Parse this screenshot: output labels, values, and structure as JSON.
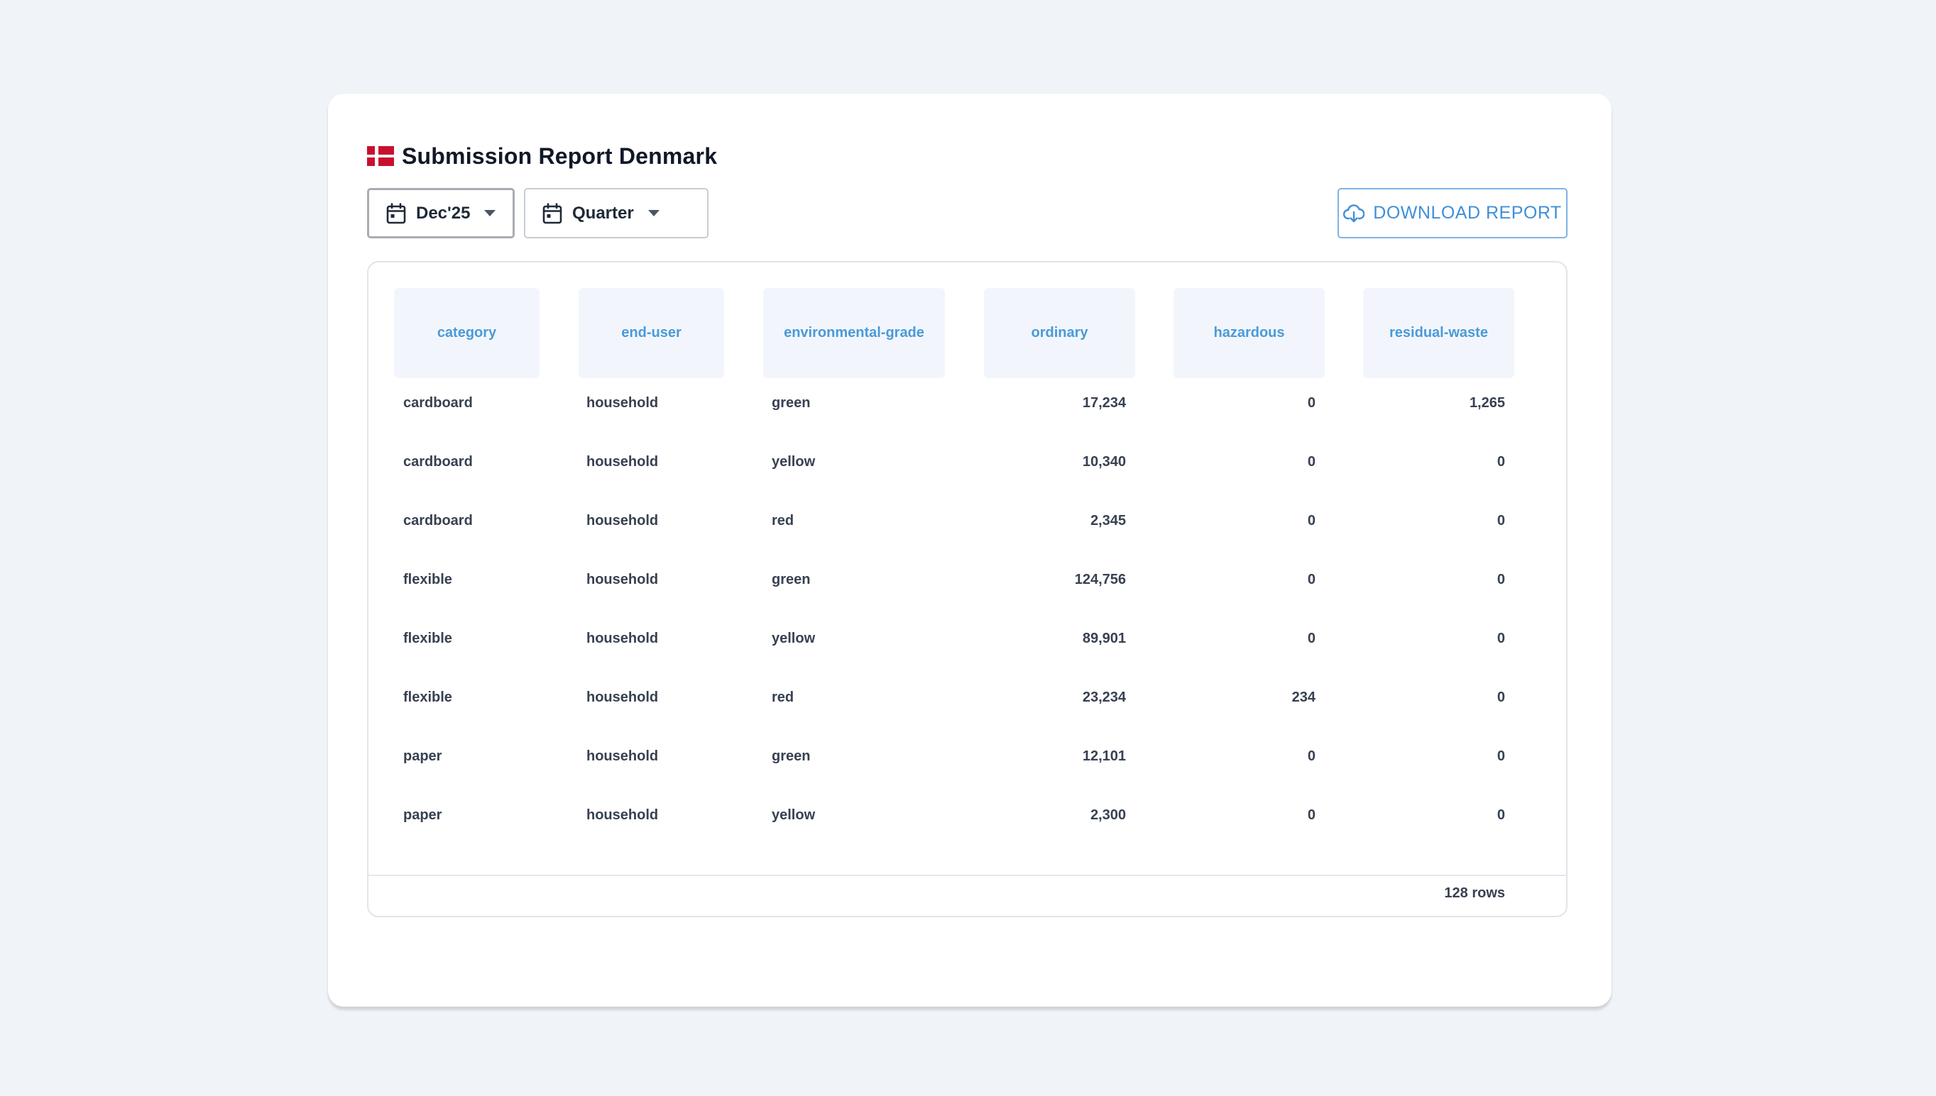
{
  "report": {
    "title": "Submission Report Denmark",
    "flag_icon": "denmark-flag",
    "colors": {
      "flag_red": "#c8102e",
      "accent": "#3f8fd8",
      "header_bg": "#f2f6fc"
    }
  },
  "filters": {
    "period": {
      "label": "Dec'25",
      "icon": "calendar-icon"
    },
    "granularity": {
      "label": "Quarter",
      "icon": "calendar-icon"
    }
  },
  "download": {
    "label": "DOWNLOAD REPORT",
    "icon": "cloud-download-icon"
  },
  "table": {
    "columns": [
      "category",
      "end-user",
      "environmental-grade",
      "ordinary",
      "hazardous",
      "residual-waste"
    ],
    "rows": [
      [
        "cardboard",
        "household",
        "green",
        "17,234",
        "0",
        "1,265"
      ],
      [
        "cardboard",
        "household",
        "yellow",
        "10,340",
        "0",
        "0"
      ],
      [
        "cardboard",
        "household",
        "red",
        "2,345",
        "0",
        "0"
      ],
      [
        "flexible",
        "household",
        "green",
        "124,756",
        "0",
        "0"
      ],
      [
        "flexible",
        "household",
        "yellow",
        "89,901",
        "0",
        "0"
      ],
      [
        "flexible",
        "household",
        "red",
        "23,234",
        "234",
        "0"
      ],
      [
        "paper",
        "household",
        "green",
        "12,101",
        "0",
        "0"
      ],
      [
        "paper",
        "household",
        "yellow",
        "2,300",
        "0",
        "0"
      ]
    ],
    "row_count": "128 rows"
  }
}
